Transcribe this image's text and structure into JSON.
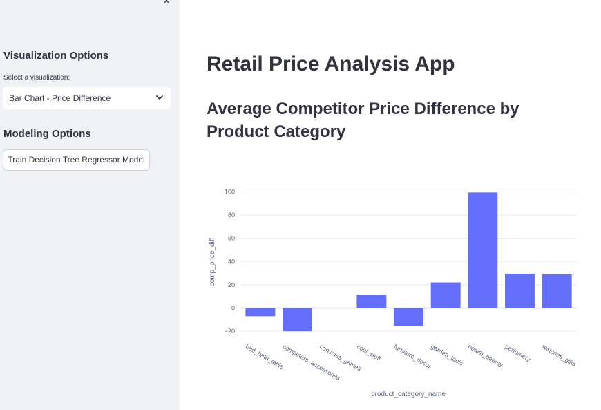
{
  "sidebar": {
    "close_glyph": "×",
    "visualization_heading": "Visualization Options",
    "select_label": "Select a visualization:",
    "select_value": "Bar Chart - Price Difference",
    "modeling_heading": "Modeling Options",
    "train_button": "Train Decision Tree Regressor Model"
  },
  "main": {
    "title": "Retail Price Analysis App",
    "subtitle": "Average Competitor Price Difference by Product Category"
  },
  "colors": {
    "bar": "#636efa",
    "sidebar_bg": "#f0f2f6",
    "grid": "#e8eaf0"
  },
  "chart_data": {
    "type": "bar",
    "xlabel": "product_category_name",
    "ylabel": "comp_price_diff",
    "categories": [
      "bed_bath_table",
      "computers_accessories",
      "consoles_games",
      "cool_stuff",
      "furniture_decor",
      "garden_tools",
      "health_beauty",
      "perfumery",
      "watches_gifts"
    ],
    "values": [
      -7,
      -20,
      0,
      11.5,
      -15.5,
      22,
      99.5,
      29.5,
      29
    ],
    "yticks": [
      -20,
      0,
      20,
      40,
      60,
      80,
      100
    ],
    "ylim": [
      -26,
      102
    ],
    "grid": true
  }
}
